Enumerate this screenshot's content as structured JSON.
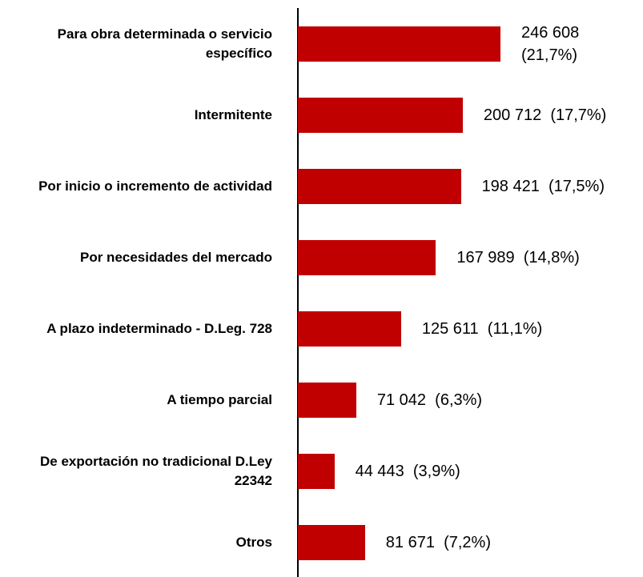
{
  "chart_data": {
    "type": "bar",
    "orientation": "horizontal",
    "color": "#c00000",
    "categories": [
      "Para obra determinada o servicio específico",
      "Intermitente",
      "Por inicio o incremento de actividad",
      "Por necesidades del mercado",
      "A plazo indeterminado - D.Leg. 728",
      "A tiempo parcial",
      "De exportación no tradicional D.Ley 22342",
      "Otros"
    ],
    "values": [
      246608,
      200712,
      198421,
      167989,
      125611,
      71042,
      44443,
      81671
    ],
    "value_labels": [
      "246 608  (21,7%)",
      "200 712  (17,7%)",
      "198 421  (17,5%)",
      "167 989  (14,8%)",
      "125 611  (11,1%)",
      "71 042  (6,3%)",
      "44 443  (3,9%)",
      "81 671  (7,2%)"
    ]
  }
}
